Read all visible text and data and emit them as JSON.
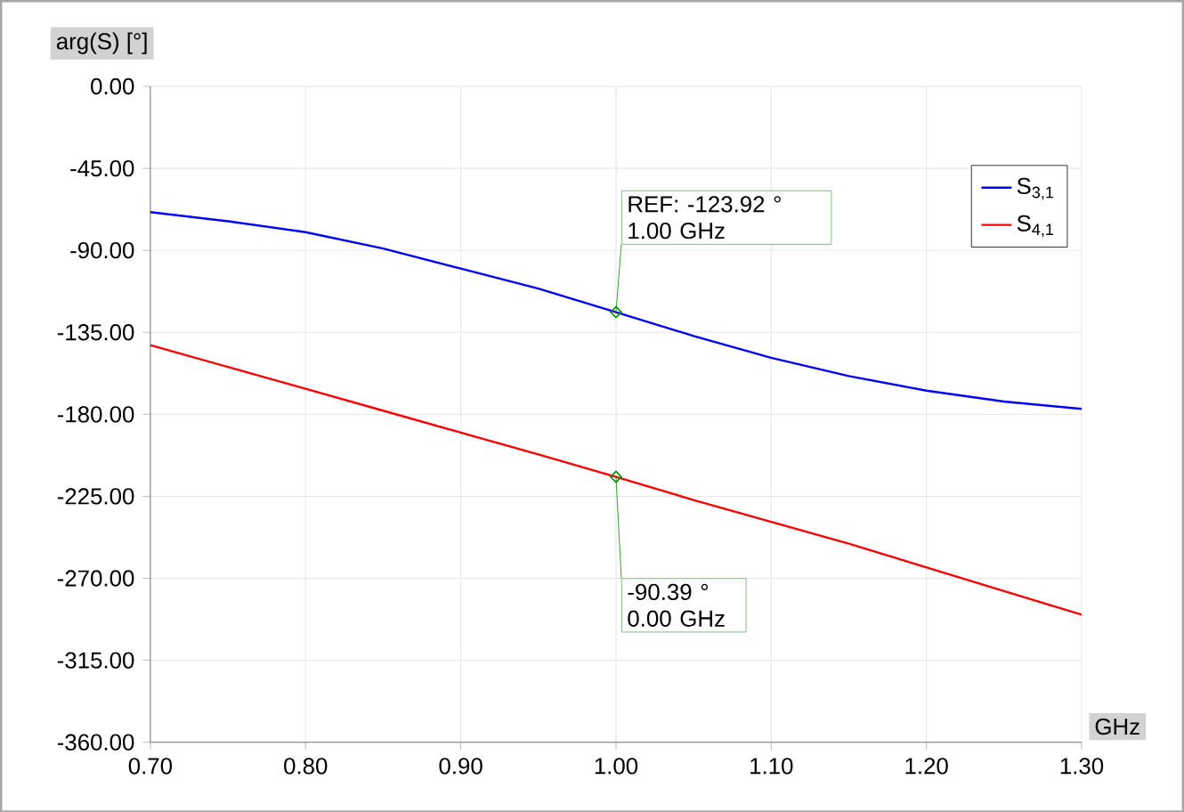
{
  "chart_data": {
    "type": "line",
    "xlabel": "GHz",
    "ylabel": "arg(S) [°]",
    "x": [
      0.7,
      0.75,
      0.8,
      0.85,
      0.9,
      0.95,
      1.0,
      1.05,
      1.1,
      1.15,
      1.2,
      1.25,
      1.3
    ],
    "series": [
      {
        "name": "S$_{3,1}$",
        "color": "#0000ff",
        "values": [
          -69,
          -74,
          -80,
          -89,
          -100,
          -111,
          -123.92,
          -137,
          -149,
          -159,
          -167,
          -173,
          -177
        ]
      },
      {
        "name": "S$_{4,1}$",
        "color": "#ff0000",
        "values": [
          -142,
          -154,
          -166,
          -178,
          -190,
          -202,
          -214.31,
          -227,
          -239,
          -251,
          -264,
          -277,
          -290
        ]
      }
    ],
    "xlim": [
      0.7,
      1.3
    ],
    "xticks": [
      {
        "value": 0.7,
        "label": "0.70"
      },
      {
        "value": 0.8,
        "label": "0.80"
      },
      {
        "value": 0.9,
        "label": "0.90"
      },
      {
        "value": 1.0,
        "label": "1.00"
      },
      {
        "value": 1.1,
        "label": "1.10"
      },
      {
        "value": 1.2,
        "label": "1.20"
      },
      {
        "value": 1.3,
        "label": "1.30"
      }
    ],
    "ylim": [
      -360,
      0
    ],
    "yticks": [
      {
        "value": 0,
        "label": "0.00"
      },
      {
        "value": -45,
        "label": "-45.00"
      },
      {
        "value": -90,
        "label": "-90.00"
      },
      {
        "value": -135,
        "label": "-135.00"
      },
      {
        "value": -180,
        "label": "-180.00"
      },
      {
        "value": -225,
        "label": "-225.00"
      },
      {
        "value": -270,
        "label": "-270.00"
      },
      {
        "value": -315,
        "label": "-315.00"
      },
      {
        "value": -360,
        "label": "-360.00"
      }
    ],
    "annotations": [
      {
        "text": "REF: -123.92 ° 1.00 GHz",
        "x": 1.0,
        "y": -123.92
      },
      {
        "text": "-90.39 ° 0.00 GHz",
        "x": 1.0,
        "y": -214.31
      }
    ],
    "grid": true,
    "legend": "top right",
    "line_style": "solid"
  }
}
